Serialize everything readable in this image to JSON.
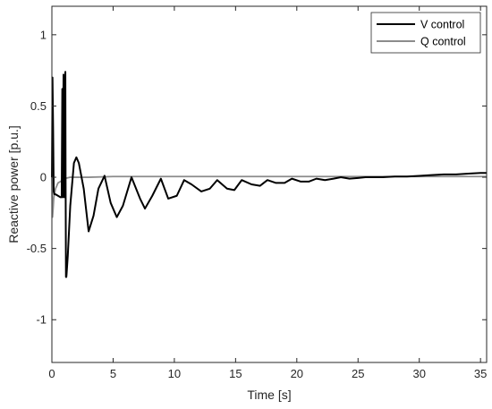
{
  "chart_data": {
    "type": "line",
    "title": "",
    "xlabel": "Time [s]",
    "ylabel": "Reactive power [p.u.]",
    "xlim": [
      0,
      35.5
    ],
    "ylim": [
      -1.3,
      1.2
    ],
    "xticks": [
      0,
      5,
      10,
      15,
      20,
      25,
      30,
      35
    ],
    "yticks": [
      -1,
      -0.5,
      0,
      0.5,
      1
    ],
    "xtick_labels": [
      "0",
      "5",
      "10",
      "15",
      "20",
      "25",
      "30",
      "35"
    ],
    "ytick_labels": [
      "-1",
      "-0.5",
      "0",
      "0.5",
      "1"
    ],
    "grid": false,
    "legend_position": "top-right",
    "series": [
      {
        "name": "V control",
        "color": "#000000",
        "x": [
          0,
          0.05,
          0.1,
          0.15,
          0.2,
          0.3,
          0.5,
          0.7,
          0.8,
          0.85,
          0.9,
          0.95,
          1.0,
          1.02,
          1.05,
          1.1,
          1.12,
          1.15,
          1.18,
          1.2,
          1.3,
          1.5,
          1.8,
          2.0,
          2.2,
          2.6,
          3.0,
          3.4,
          3.8,
          4.3,
          4.8,
          5.3,
          5.8,
          6.5,
          7.2,
          7.6,
          8.2,
          8.9,
          9.5,
          10.2,
          10.8,
          11.4,
          12.2,
          12.9,
          13.5,
          14.3,
          14.9,
          15.5,
          16.3,
          17.0,
          17.6,
          18.3,
          19.0,
          19.6,
          20.3,
          21.0,
          21.6,
          22.3,
          23.0,
          23.6,
          24.3,
          25.0,
          25.6,
          26.3,
          27.0,
          28.0,
          29.0,
          30.0,
          31.0,
          32.0,
          33.0,
          34.0,
          35.0,
          35.5
        ],
        "y": [
          0.0,
          0.7,
          0.35,
          -0.1,
          -0.12,
          -0.12,
          -0.13,
          -0.14,
          -0.14,
          0.62,
          -0.14,
          0.72,
          0.0,
          -0.14,
          -0.14,
          0.74,
          0.0,
          -0.7,
          -0.7,
          -0.68,
          -0.55,
          -0.2,
          0.1,
          0.14,
          0.1,
          -0.08,
          -0.38,
          -0.27,
          -0.08,
          0.01,
          -0.18,
          -0.28,
          -0.2,
          0.0,
          -0.15,
          -0.22,
          -0.13,
          -0.01,
          -0.15,
          -0.13,
          -0.02,
          -0.05,
          -0.1,
          -0.08,
          -0.02,
          -0.08,
          -0.09,
          -0.02,
          -0.05,
          -0.06,
          -0.02,
          -0.04,
          -0.04,
          -0.01,
          -0.03,
          -0.03,
          -0.01,
          -0.02,
          -0.01,
          0.0,
          -0.01,
          -0.005,
          0.0,
          0.0,
          0.0,
          0.005,
          0.005,
          0.01,
          0.015,
          0.02,
          0.02,
          0.025,
          0.03,
          0.03
        ]
      },
      {
        "name": "Q control",
        "color": "#8c8c8c",
        "x": [
          0,
          0.05,
          0.1,
          0.15,
          0.2,
          0.3,
          0.5,
          0.7,
          1.0,
          1.5,
          2.0,
          3.0,
          5.0,
          10.0,
          15.0,
          20.0,
          25.0,
          30.0,
          35.0,
          35.5
        ],
        "y": [
          0.0,
          -0.28,
          -0.22,
          -0.15,
          -0.12,
          -0.08,
          -0.04,
          -0.03,
          -0.01,
          0.0,
          0.0,
          0.0,
          0.005,
          0.005,
          0.005,
          0.005,
          0.005,
          0.005,
          0.005,
          0.005
        ]
      }
    ]
  }
}
